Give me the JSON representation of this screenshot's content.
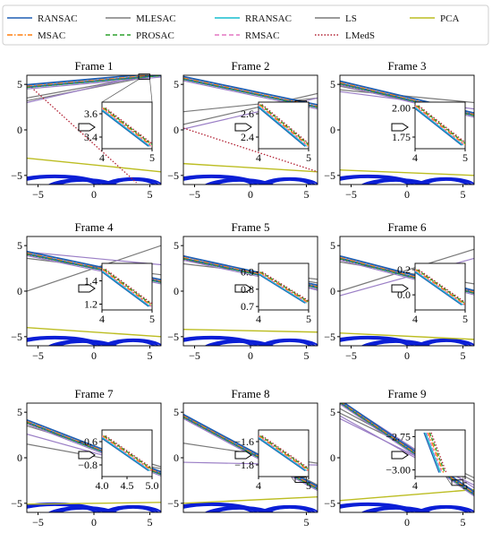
{
  "colors": {
    "RANSAC": "#1f5fb4",
    "MSAC": "#ff7f0e",
    "MLESAC": "#7f7f7f",
    "PROSAC": "#2ca02c",
    "RRANSAC": "#17becf",
    "RMSAC": "#e377c2",
    "LS": "#7a7a7a",
    "LMedS": "#b22234",
    "PCA": "#bcbd22",
    "points": "#0b1fd6",
    "extra_line": "#9b7fc6"
  },
  "legend": [
    {
      "name": "RANSAC",
      "style": "solid"
    },
    {
      "name": "MLESAC",
      "style": "solid"
    },
    {
      "name": "RRANSAC",
      "style": "solid"
    },
    {
      "name": "LS",
      "style": "solid"
    },
    {
      "name": "PCA",
      "style": "solid"
    },
    {
      "name": "MSAC",
      "style": "dashdot"
    },
    {
      "name": "PROSAC",
      "style": "dashed"
    },
    {
      "name": "RMSAC",
      "style": "dashed"
    },
    {
      "name": "LMedS",
      "style": "dotted"
    }
  ],
  "chart_data": [
    {
      "type": "line",
      "title": "Frame 1",
      "xlim": [
        -6,
        6
      ],
      "ylim": [
        -6,
        6
      ],
      "xticks": [
        "−5",
        "0",
        "5"
      ],
      "xtick_values": [
        -5,
        0,
        5
      ],
      "yticks": [
        "5",
        "0",
        "−5"
      ],
      "ytick_values": [
        5,
        0,
        -5
      ],
      "fit_lines": {
        "main": [
          [
            -6,
            4.7
          ],
          [
            6,
            6.0
          ]
        ],
        "gray": [
          [
            [
              -6,
              3.5
            ],
            [
              6,
              6.2
            ]
          ],
          [
            [
              -6,
              3.2
            ],
            [
              6,
              6.1
            ]
          ]
        ],
        "purple": [
          [
            [
              -6,
              3.0
            ],
            [
              6,
              6.4
            ]
          ]
        ],
        "lmeds": [
          [
            -5.8,
            4.9
          ],
          [
            3.8,
            -5.8
          ]
        ],
        "pca": [
          [
            -6,
            -3.1
          ],
          [
            6,
            -4.6
          ]
        ]
      },
      "inset": {
        "xlim": [
          4,
          5
        ],
        "ylim": [
          3.3,
          3.7
        ],
        "yticks": [
          "3.6",
          "3.4"
        ],
        "ytick_values": [
          3.6,
          3.4
        ],
        "xticks": [
          "4",
          "5"
        ],
        "xtick_values": [
          4,
          5
        ],
        "line": [
          [
            4,
            3.65
          ],
          [
            5,
            3.32
          ]
        ]
      }
    },
    {
      "type": "line",
      "title": "Frame 2",
      "xlim": [
        -6,
        6
      ],
      "ylim": [
        -6,
        6
      ],
      "xticks": [
        "−5",
        "0",
        "5"
      ],
      "xtick_values": [
        -5,
        0,
        5
      ],
      "yticks": [
        "5",
        "0",
        "−5"
      ],
      "ytick_values": [
        5,
        0,
        -5
      ],
      "fit_lines": {
        "main": [
          [
            -6,
            5.6
          ],
          [
            6,
            2.5
          ]
        ],
        "gray": [
          [
            [
              -6,
              0.6
            ],
            [
              6,
              4.0
            ]
          ],
          [
            [
              -6,
              2.0
            ],
            [
              6,
              3.5
            ]
          ]
        ],
        "purple": [
          [
            [
              -6,
              0.1
            ],
            [
              6,
              3.5
            ]
          ]
        ],
        "lmeds": [
          [
            -6,
            0.2
          ],
          [
            6,
            -4.6
          ]
        ],
        "pca": [
          [
            -6,
            -3.7
          ],
          [
            6,
            -4.6
          ]
        ]
      },
      "inset": {
        "xlim": [
          4,
          5
        ],
        "ylim": [
          2.3,
          2.7
        ],
        "yticks": [
          "2.6",
          "2.4"
        ],
        "ytick_values": [
          2.6,
          2.4
        ],
        "xticks": [
          "4",
          "5"
        ],
        "xtick_values": [
          4,
          5
        ],
        "line": [
          [
            4,
            2.68
          ],
          [
            5,
            2.32
          ]
        ]
      }
    },
    {
      "type": "line",
      "title": "Frame 3",
      "xlim": [
        -6,
        6
      ],
      "ylim": [
        -6,
        6
      ],
      "xticks": [
        "−5",
        "0",
        "5"
      ],
      "xtick_values": [
        -5,
        0,
        5
      ],
      "yticks": [
        "5",
        "0",
        "−5"
      ],
      "ytick_values": [
        5,
        0,
        -5
      ],
      "fit_lines": {
        "main": [
          [
            -6,
            5.1
          ],
          [
            6,
            1.6
          ]
        ],
        "gray": [
          [
            [
              -6,
              4.8
            ],
            [
              6,
              1.7
            ]
          ],
          [
            [
              -6,
              4.4
            ],
            [
              6,
              3.0
            ]
          ]
        ],
        "purple": [
          [
            [
              -6,
              4.2
            ],
            [
              6,
              2.3
            ]
          ]
        ],
        "lmeds": [
          [
            -6,
            5.0
          ],
          [
            6,
            1.6
          ]
        ],
        "pca": [
          [
            -6,
            -4.4
          ],
          [
            6,
            -5.0
          ]
        ]
      },
      "inset": {
        "xlim": [
          4,
          5
        ],
        "ylim": [
          1.65,
          2.05
        ],
        "yticks": [
          "2.00",
          "1.75"
        ],
        "ytick_values": [
          2.0,
          1.75
        ],
        "xticks": [
          "4",
          "5"
        ],
        "xtick_values": [
          4,
          5
        ],
        "line": [
          [
            4,
            2.02
          ],
          [
            5,
            1.68
          ]
        ]
      }
    },
    {
      "type": "line",
      "title": "Frame 4",
      "xlim": [
        -6,
        6
      ],
      "ylim": [
        -6,
        6
      ],
      "xticks": [
        "−5",
        "0",
        "5"
      ],
      "xtick_values": [
        -5,
        0,
        5
      ],
      "yticks": [
        "5",
        "0",
        "−5"
      ],
      "ytick_values": [
        5,
        0,
        -5
      ],
      "fit_lines": {
        "main": [
          [
            -6,
            4.1
          ],
          [
            6,
            1.0
          ]
        ],
        "gray": [
          [
            [
              -6,
              0.0
            ],
            [
              6,
              5.0
            ]
          ],
          [
            [
              -6,
              3.6
            ],
            [
              6,
              1.8
            ]
          ]
        ],
        "purple": [
          [
            [
              -6,
              4.3
            ],
            [
              6,
              2.9
            ]
          ]
        ],
        "lmeds": [
          [
            -6,
            4.0
          ],
          [
            6,
            1.1
          ]
        ],
        "pca": [
          [
            -6,
            -4.0
          ],
          [
            6,
            -5.0
          ]
        ]
      },
      "inset": {
        "xlim": [
          4,
          5
        ],
        "ylim": [
          1.15,
          1.55
        ],
        "yticks": [
          "1.4",
          "1.2"
        ],
        "ytick_values": [
          1.4,
          1.2
        ],
        "xticks": [
          "4",
          "5"
        ],
        "xtick_values": [
          4,
          5
        ],
        "line": [
          [
            4,
            1.5
          ],
          [
            5,
            1.18
          ]
        ]
      }
    },
    {
      "type": "line",
      "title": "Frame 5",
      "xlim": [
        -6,
        6
      ],
      "ylim": [
        -6,
        6
      ],
      "xticks": [
        "−5",
        "0",
        "5"
      ],
      "xtick_values": [
        -5,
        0,
        5
      ],
      "yticks": [
        "5",
        "0",
        "−5"
      ],
      "ytick_values": [
        5,
        0,
        -5
      ],
      "fit_lines": {
        "main": [
          [
            -6,
            3.6
          ],
          [
            6,
            0.4
          ]
        ],
        "gray": [
          [
            [
              -6,
              3.4
            ],
            [
              6,
              0.9
            ]
          ],
          [
            [
              -6,
              3.0
            ],
            [
              6,
              1.3
            ]
          ]
        ],
        "purple": [
          [
            [
              -6,
              3.9
            ],
            [
              6,
              0.1
            ]
          ]
        ],
        "lmeds": [
          [
            -6,
            3.5
          ],
          [
            6,
            0.5
          ]
        ],
        "pca": [
          [
            -6,
            -4.2
          ],
          [
            6,
            -4.5
          ]
        ]
      },
      "inset": {
        "xlim": [
          4,
          5
        ],
        "ylim": [
          0.68,
          0.95
        ],
        "yticks": [
          "0.9",
          "0.8",
          "0.7"
        ],
        "ytick_values": [
          0.9,
          0.8,
          0.7
        ],
        "xticks": [
          "4",
          "5"
        ],
        "xtick_values": [
          4,
          5
        ],
        "line": [
          [
            4,
            0.9
          ],
          [
            5,
            0.72
          ]
        ]
      }
    },
    {
      "type": "line",
      "title": "Frame 6",
      "xlim": [
        -6,
        6
      ],
      "ylim": [
        -6,
        6
      ],
      "xticks": [
        "−5",
        "0",
        "5"
      ],
      "xtick_values": [
        -5,
        0,
        5
      ],
      "yticks": [
        "5",
        "0",
        "−5"
      ],
      "ytick_values": [
        5,
        0,
        -5
      ],
      "fit_lines": {
        "main": [
          [
            -6,
            3.6
          ],
          [
            6,
            -0.2
          ]
        ],
        "gray": [
          [
            [
              -6,
              3.2
            ],
            [
              6,
              0.8
            ]
          ],
          [
            [
              -6,
              0.0
            ],
            [
              6,
              4.6
            ]
          ]
        ],
        "purple": [
          [
            [
              -6,
              -0.5
            ],
            [
              6,
              3.6
            ]
          ]
        ],
        "lmeds": [
          [
            -6,
            3.5
          ],
          [
            6,
            -0.1
          ]
        ],
        "pca": [
          [
            -6,
            -4.6
          ],
          [
            6,
            -5.3
          ]
        ]
      },
      "inset": {
        "xlim": [
          4,
          5
        ],
        "ylim": [
          -0.12,
          0.25
        ],
        "yticks": [
          "0.2",
          "0.0"
        ],
        "ytick_values": [
          0.2,
          0.0
        ],
        "xticks": [
          "4",
          "5"
        ],
        "xtick_values": [
          4,
          5
        ],
        "line": [
          [
            4,
            0.2
          ],
          [
            5,
            -0.08
          ]
        ]
      }
    },
    {
      "type": "line",
      "title": "Frame 7",
      "xlim": [
        -6,
        6
      ],
      "ylim": [
        -6,
        6
      ],
      "xticks": [
        "−5",
        "0",
        "5"
      ],
      "xtick_values": [
        -5,
        0,
        5
      ],
      "yticks": [
        "5",
        "0",
        "−5"
      ],
      "ytick_values": [
        5,
        0,
        -5
      ],
      "fit_lines": {
        "main": [
          [
            -6,
            3.9
          ],
          [
            6,
            -1.8
          ]
        ],
        "gray": [
          [
            [
              -6,
              3.5
            ],
            [
              6,
              -1.0
            ]
          ],
          [
            [
              -6,
              1.5
            ],
            [
              6,
              -1.2
            ]
          ]
        ],
        "purple": [
          [
            [
              -6,
              2.6
            ],
            [
              6,
              -1.5
            ]
          ]
        ],
        "lmeds": [
          [
            -6,
            3.8
          ],
          [
            6,
            -1.7
          ]
        ],
        "pca": [
          [
            -6,
            -5.1
          ],
          [
            6,
            -4.9
          ]
        ]
      },
      "inset": {
        "xlim": [
          4.0,
          5.0
        ],
        "ylim": [
          -0.9,
          -0.5
        ],
        "yticks": [
          "−0.8",
          "−0.6"
        ],
        "ytick_values": [
          -0.8,
          -0.6
        ],
        "xticks": [
          "4.0",
          "4.5",
          "5.0"
        ],
        "xtick_values": [
          4.0,
          4.5,
          5.0
        ],
        "line": [
          [
            4.0,
            -0.55
          ],
          [
            5.0,
            -0.85
          ]
        ]
      }
    },
    {
      "type": "line",
      "title": "Frame 8",
      "xlim": [
        -6,
        6
      ],
      "ylim": [
        -6,
        6
      ],
      "xticks": [
        "5"
      ],
      "xtick_values": [
        5
      ],
      "yticks": [
        "5",
        "0",
        "−5"
      ],
      "ytick_values": [
        5,
        0,
        -5
      ],
      "fit_lines": {
        "main": [
          [
            -6,
            4.5
          ],
          [
            6,
            -3.4
          ]
        ],
        "gray": [
          [
            [
              -6,
              4.7
            ],
            [
              6,
              -3.0
            ]
          ],
          [
            [
              -6,
              1.6
            ],
            [
              6,
              -0.6
            ]
          ]
        ],
        "purple": [
          [
            [
              -6,
              -0.5
            ],
            [
              6,
              -0.8
            ]
          ]
        ],
        "lmeds": [
          [
            -6,
            4.4
          ],
          [
            6,
            -3.3
          ]
        ],
        "pca": [
          [
            -6,
            -5.0
          ],
          [
            6,
            -4.3
          ]
        ]
      },
      "inset": {
        "xlim": [
          4,
          5
        ],
        "ylim": [
          -1.9,
          -1.5
        ],
        "yticks": [
          "−1.8",
          "−1.6"
        ],
        "ytick_values": [
          -1.8,
          -1.6
        ],
        "xticks": [
          "4",
          "5"
        ],
        "xtick_values": [
          4,
          5
        ],
        "line": [
          [
            4,
            -1.55
          ],
          [
            5,
            -1.85
          ]
        ]
      }
    },
    {
      "type": "line",
      "title": "Frame 9",
      "xlim": [
        -6,
        6
      ],
      "ylim": [
        -6,
        6
      ],
      "xticks": [
        "0",
        "5"
      ],
      "xtick_values": [
        0,
        5
      ],
      "yticks": [
        "5",
        "0",
        "−5"
      ],
      "ytick_values": [
        5,
        0,
        -5
      ],
      "fit_lines": {
        "main": [
          [
            -6,
            6.1
          ],
          [
            6,
            -4.0
          ]
        ],
        "gray": [
          [
            [
              -6,
              5.4
            ],
            [
              6,
              -2.6
            ]
          ],
          [
            [
              -6,
              4.9
            ],
            [
              6,
              -2.2
            ]
          ]
        ],
        "purple": [
          [
            [
              -6,
              4.6
            ],
            [
              6,
              -3.6
            ]
          ],
          [
            [
              -6,
              4.3
            ],
            [
              6,
              -3.0
            ]
          ],
          [
            [
              -6,
              6.3
            ],
            [
              6,
              -3.3
            ]
          ]
        ],
        "lmeds": [
          [
            -6,
            6.0
          ],
          [
            6,
            -3.9
          ]
        ],
        "pca": [
          [
            -6,
            -4.7
          ],
          [
            6,
            -3.5
          ]
        ]
      },
      "inset": {
        "xlim": [
          4,
          5
        ],
        "ylim": [
          -3.05,
          -2.7
        ],
        "yticks": [
          "−3.00",
          "−2.75"
        ],
        "ytick_values": [
          -3.0,
          -2.75
        ],
        "xticks": [
          "4",
          "5"
        ],
        "xtick_values": [
          4,
          5
        ],
        "line": [
          [
            4.25,
            -2.72
          ],
          [
            4.55,
            -3.02
          ]
        ]
      }
    }
  ]
}
